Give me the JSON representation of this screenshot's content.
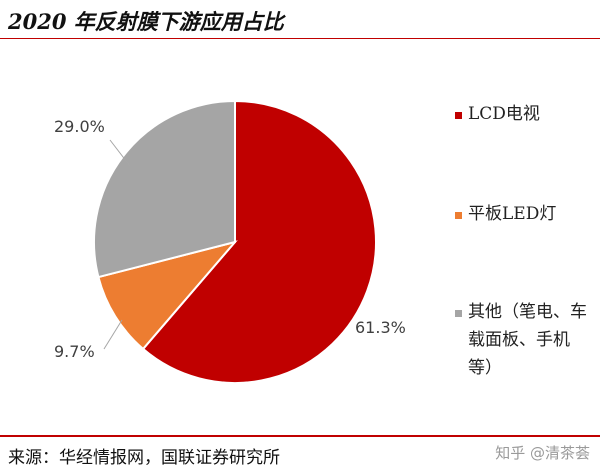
{
  "header": {
    "title": "2020 年反射膜下游应用占比"
  },
  "chart_data": {
    "type": "pie",
    "title": "2020 年反射膜下游应用占比",
    "series": [
      {
        "name": "LCD电视",
        "value": 61.3,
        "label": "61.3%",
        "color": "#c00000"
      },
      {
        "name": "平板LED灯",
        "value": 9.7,
        "label": "9.7%",
        "color": "#ed7d31"
      },
      {
        "name": "其他（笔电、车载面板、手机等）",
        "value": 29.0,
        "label": "29.0%",
        "color": "#a5a5a5"
      }
    ],
    "start_angle_deg": 0,
    "direction": "clockwise",
    "legend_position": "right"
  },
  "footer": {
    "source": "来源：华经情报网，国联证券研究所",
    "watermark": "知乎 @清茶荟"
  }
}
